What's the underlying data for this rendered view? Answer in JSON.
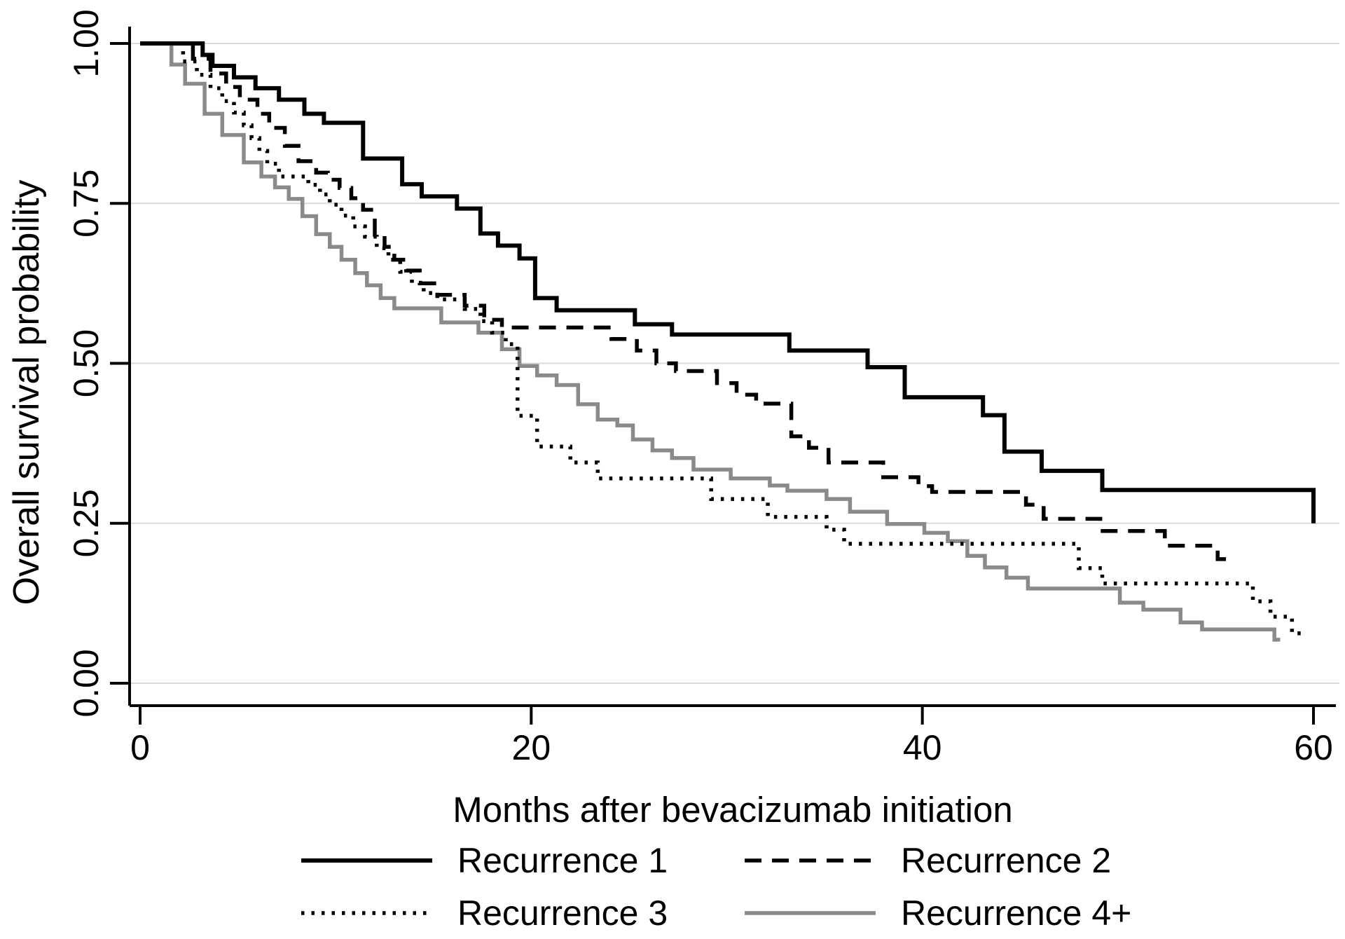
{
  "figure": {
    "background": "#ffffff",
    "text_color": "#000000"
  },
  "chart_data": {
    "type": "line",
    "subtype": "kaplan-meier-step-survival",
    "title": "",
    "xlabel": "Months after bevacizumab initiation",
    "ylabel": "Overall survival probability",
    "xlim": [
      0,
      60
    ],
    "ylim": [
      0,
      1
    ],
    "grid": "horizontal",
    "legend_position": "bottom-two-columns",
    "xticks": [
      {
        "value": 0,
        "label": "0"
      },
      {
        "value": 20,
        "label": "20"
      },
      {
        "value": 40,
        "label": "40"
      },
      {
        "value": 60,
        "label": "60"
      }
    ],
    "yticks": [
      {
        "value": 0.0,
        "label": "0.00"
      },
      {
        "value": 0.25,
        "label": "0.25"
      },
      {
        "value": 0.5,
        "label": "0.50"
      },
      {
        "value": 0.75,
        "label": "0.75"
      },
      {
        "value": 1.0,
        "label": "1.00"
      }
    ],
    "colors": {
      "black": "#000000",
      "gray_series": "#8a8a8a",
      "gridline": "#d9d9d9",
      "axis": "#000000"
    },
    "series": [
      {
        "name": "Recurrence 1",
        "style": "solid",
        "color": "#000000",
        "width": 6,
        "dash": "",
        "points": [
          [
            0,
            1.0
          ],
          [
            3.2,
            0.982
          ],
          [
            3.7,
            0.965
          ],
          [
            4.8,
            0.947
          ],
          [
            5.9,
            0.93
          ],
          [
            7.1,
            0.912
          ],
          [
            8.4,
            0.89
          ],
          [
            9.4,
            0.876
          ],
          [
            11.4,
            0.82
          ],
          [
            13.4,
            0.78
          ],
          [
            14.4,
            0.761
          ],
          [
            16.2,
            0.742
          ],
          [
            17.4,
            0.703
          ],
          [
            18.3,
            0.684
          ],
          [
            19.4,
            0.664
          ],
          [
            20.2,
            0.602
          ],
          [
            21.3,
            0.583
          ],
          [
            25.3,
            0.561
          ],
          [
            27.2,
            0.545
          ],
          [
            33.2,
            0.52
          ],
          [
            37.2,
            0.494
          ],
          [
            39.1,
            0.447
          ],
          [
            43.1,
            0.419
          ],
          [
            44.2,
            0.362
          ],
          [
            46.1,
            0.332
          ],
          [
            49.2,
            0.302
          ],
          [
            60,
            0.25
          ]
        ]
      },
      {
        "name": "Recurrence 2",
        "style": "dashed",
        "color": "#000000",
        "width": 5.5,
        "dash": "24 15",
        "points": [
          [
            0,
            1.0
          ],
          [
            2.7,
            0.976
          ],
          [
            3.6,
            0.953
          ],
          [
            4.4,
            0.932
          ],
          [
            5.1,
            0.912
          ],
          [
            6.0,
            0.89
          ],
          [
            6.6,
            0.868
          ],
          [
            7.4,
            0.84
          ],
          [
            8.1,
            0.816
          ],
          [
            9.0,
            0.798
          ],
          [
            9.6,
            0.787
          ],
          [
            10.2,
            0.774
          ],
          [
            10.8,
            0.758
          ],
          [
            11.4,
            0.74
          ],
          [
            12.0,
            0.701
          ],
          [
            12.5,
            0.682
          ],
          [
            13.0,
            0.662
          ],
          [
            13.6,
            0.645
          ],
          [
            14.3,
            0.625
          ],
          [
            15.2,
            0.607
          ],
          [
            16.6,
            0.59
          ],
          [
            17.6,
            0.568
          ],
          [
            18.5,
            0.556
          ],
          [
            24.1,
            0.538
          ],
          [
            25.4,
            0.52
          ],
          [
            26.4,
            0.5
          ],
          [
            27.4,
            0.488
          ],
          [
            29.5,
            0.469
          ],
          [
            30.5,
            0.451
          ],
          [
            31.5,
            0.437
          ],
          [
            33.3,
            0.386
          ],
          [
            34.2,
            0.368
          ],
          [
            35.2,
            0.345
          ],
          [
            38.0,
            0.322
          ],
          [
            39.8,
            0.308
          ],
          [
            40.5,
            0.299
          ],
          [
            45.3,
            0.279
          ],
          [
            46.2,
            0.257
          ],
          [
            49.1,
            0.238
          ],
          [
            52.4,
            0.215
          ],
          [
            55.1,
            0.194
          ],
          [
            55.7,
            0.194
          ]
        ]
      },
      {
        "name": "Recurrence 3",
        "style": "dotted",
        "color": "#000000",
        "width": 5.5,
        "dash": "4.5 10",
        "points": [
          [
            0,
            1.0
          ],
          [
            2.2,
            0.972
          ],
          [
            2.9,
            0.951
          ],
          [
            3.6,
            0.93
          ],
          [
            4.2,
            0.91
          ],
          [
            4.8,
            0.892
          ],
          [
            5.3,
            0.872
          ],
          [
            5.7,
            0.852
          ],
          [
            6.1,
            0.832
          ],
          [
            6.5,
            0.812
          ],
          [
            7.1,
            0.792
          ],
          [
            8.6,
            0.779
          ],
          [
            9.2,
            0.764
          ],
          [
            9.7,
            0.748
          ],
          [
            10.3,
            0.731
          ],
          [
            10.9,
            0.714
          ],
          [
            11.5,
            0.698
          ],
          [
            12.1,
            0.68
          ],
          [
            12.7,
            0.662
          ],
          [
            13.3,
            0.643
          ],
          [
            13.9,
            0.626
          ],
          [
            14.5,
            0.61
          ],
          [
            15.2,
            0.6
          ],
          [
            16.6,
            0.585
          ],
          [
            17.4,
            0.566
          ],
          [
            18.0,
            0.548
          ],
          [
            18.7,
            0.53
          ],
          [
            19.3,
            0.418
          ],
          [
            20.3,
            0.37
          ],
          [
            22.0,
            0.345
          ],
          [
            23.4,
            0.32
          ],
          [
            29.2,
            0.288
          ],
          [
            32.1,
            0.26
          ],
          [
            35.1,
            0.24
          ],
          [
            36.0,
            0.218
          ],
          [
            48.0,
            0.18
          ],
          [
            49.2,
            0.156
          ],
          [
            56.9,
            0.128
          ],
          [
            57.8,
            0.104
          ],
          [
            58.9,
            0.078
          ],
          [
            59.4,
            0.078
          ]
        ]
      },
      {
        "name": "Recurrence 4+",
        "style": "solid",
        "color": "#8a8a8a",
        "width": 5.5,
        "dash": "",
        "points": [
          [
            0,
            1.0
          ],
          [
            1.6,
            0.967
          ],
          [
            2.3,
            0.937
          ],
          [
            3.3,
            0.89
          ],
          [
            4.2,
            0.857
          ],
          [
            5.3,
            0.814
          ],
          [
            6.2,
            0.792
          ],
          [
            6.9,
            0.775
          ],
          [
            7.6,
            0.757
          ],
          [
            8.3,
            0.73
          ],
          [
            9.0,
            0.702
          ],
          [
            9.7,
            0.682
          ],
          [
            10.3,
            0.662
          ],
          [
            11.0,
            0.641
          ],
          [
            11.6,
            0.622
          ],
          [
            12.3,
            0.602
          ],
          [
            13.0,
            0.586
          ],
          [
            15.4,
            0.564
          ],
          [
            17.3,
            0.548
          ],
          [
            18.5,
            0.522
          ],
          [
            19.4,
            0.496
          ],
          [
            20.3,
            0.481
          ],
          [
            21.3,
            0.466
          ],
          [
            22.4,
            0.436
          ],
          [
            23.4,
            0.412
          ],
          [
            24.4,
            0.403
          ],
          [
            25.2,
            0.381
          ],
          [
            26.2,
            0.364
          ],
          [
            27.2,
            0.352
          ],
          [
            28.3,
            0.334
          ],
          [
            30.2,
            0.32
          ],
          [
            32.2,
            0.309
          ],
          [
            33.1,
            0.301
          ],
          [
            35.1,
            0.288
          ],
          [
            36.3,
            0.268
          ],
          [
            38.2,
            0.249
          ],
          [
            40.1,
            0.235
          ],
          [
            41.3,
            0.222
          ],
          [
            42.3,
            0.199
          ],
          [
            43.2,
            0.181
          ],
          [
            44.3,
            0.165
          ],
          [
            45.4,
            0.148
          ],
          [
            50.1,
            0.126
          ],
          [
            51.3,
            0.115
          ],
          [
            53.2,
            0.095
          ],
          [
            54.3,
            0.084
          ],
          [
            58.0,
            0.068
          ],
          [
            58.3,
            0.068
          ]
        ]
      }
    ]
  }
}
